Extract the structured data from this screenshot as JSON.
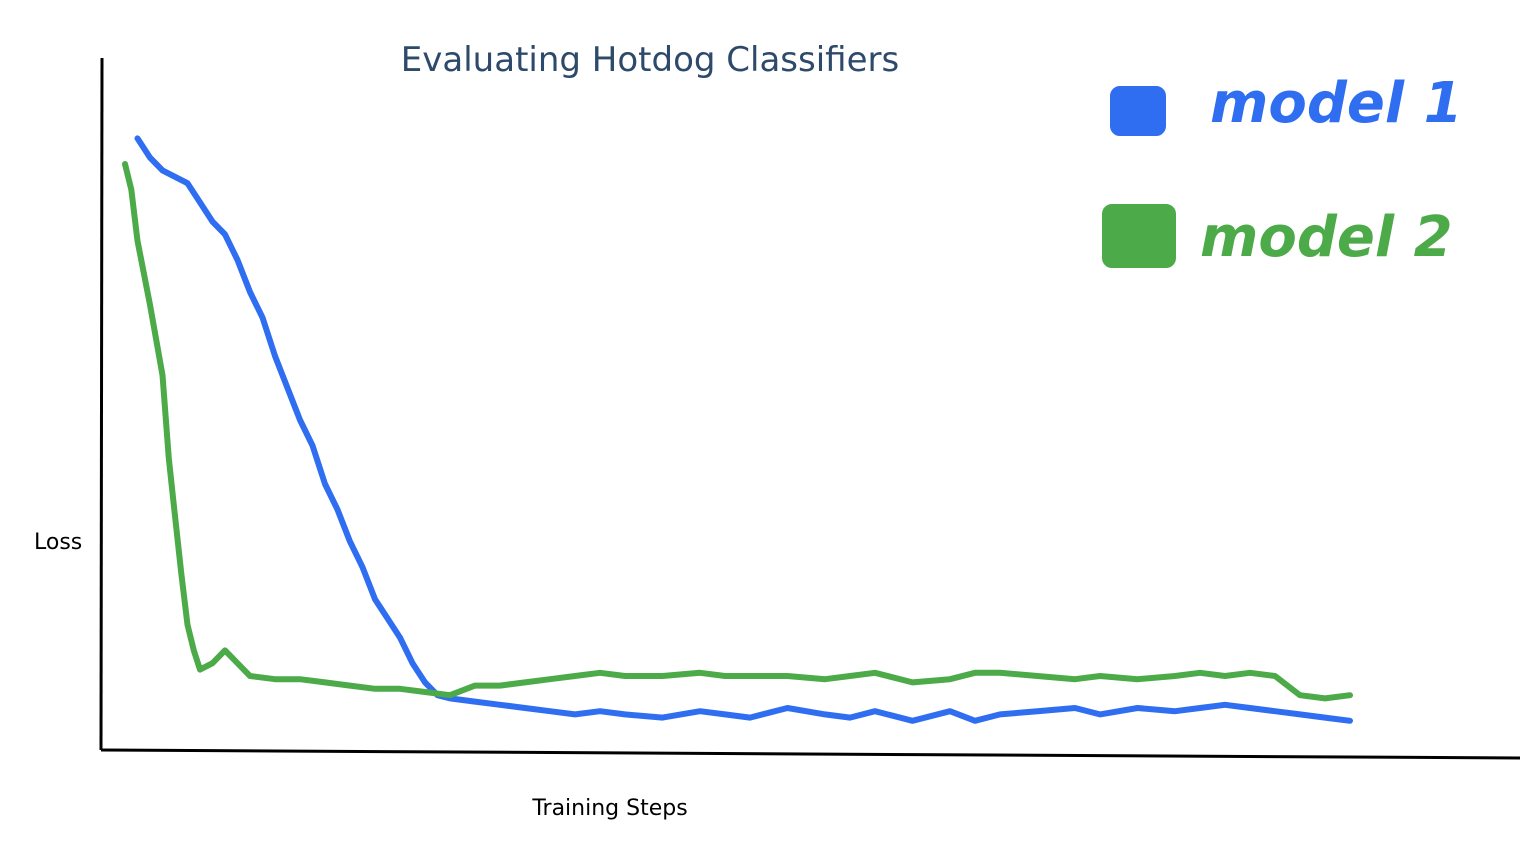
{
  "chart_data": {
    "type": "line",
    "title": "Evaluating Hotdog Classifiers",
    "xlabel": "Training Steps",
    "ylabel": "Loss",
    "ylim": [
      0,
      1
    ],
    "xlim": [
      0,
      1
    ],
    "grid": false,
    "legend": "top-right",
    "series": [
      {
        "name": "model 1",
        "color": "#2f6ef0",
        "x": [
          0.03,
          0.04,
          0.05,
          0.07,
          0.08,
          0.09,
          0.1,
          0.11,
          0.12,
          0.13,
          0.14,
          0.15,
          0.16,
          0.17,
          0.18,
          0.19,
          0.2,
          0.21,
          0.22,
          0.23,
          0.24,
          0.25,
          0.26,
          0.27,
          0.28,
          0.3,
          0.32,
          0.34,
          0.36,
          0.38,
          0.4,
          0.42,
          0.45,
          0.48,
          0.5,
          0.52,
          0.55,
          0.58,
          0.6,
          0.62,
          0.65,
          0.68,
          0.7,
          0.72,
          0.75,
          0.78,
          0.8,
          0.83,
          0.86,
          0.88,
          0.9,
          0.92,
          0.94,
          0.96,
          0.98,
          1.0
        ],
        "y": [
          0.94,
          0.91,
          0.89,
          0.87,
          0.84,
          0.81,
          0.79,
          0.75,
          0.7,
          0.66,
          0.6,
          0.55,
          0.5,
          0.46,
          0.4,
          0.36,
          0.31,
          0.27,
          0.22,
          0.19,
          0.16,
          0.12,
          0.09,
          0.07,
          0.065,
          0.06,
          0.055,
          0.05,
          0.045,
          0.04,
          0.045,
          0.04,
          0.035,
          0.045,
          0.04,
          0.035,
          0.05,
          0.04,
          0.035,
          0.045,
          0.03,
          0.045,
          0.03,
          0.04,
          0.045,
          0.05,
          0.04,
          0.05,
          0.045,
          0.05,
          0.055,
          0.05,
          0.045,
          0.04,
          0.035,
          0.03
        ]
      },
      {
        "name": "model 2",
        "color": "#4caa49",
        "x": [
          0.02,
          0.025,
          0.03,
          0.04,
          0.05,
          0.055,
          0.06,
          0.065,
          0.07,
          0.075,
          0.08,
          0.09,
          0.1,
          0.11,
          0.12,
          0.14,
          0.16,
          0.18,
          0.2,
          0.22,
          0.24,
          0.26,
          0.28,
          0.3,
          0.32,
          0.34,
          0.36,
          0.38,
          0.4,
          0.42,
          0.45,
          0.48,
          0.5,
          0.52,
          0.55,
          0.58,
          0.6,
          0.62,
          0.65,
          0.68,
          0.7,
          0.72,
          0.75,
          0.78,
          0.8,
          0.83,
          0.86,
          0.88,
          0.9,
          0.92,
          0.94,
          0.96,
          0.98,
          1.0
        ],
        "y": [
          0.9,
          0.86,
          0.78,
          0.68,
          0.57,
          0.44,
          0.35,
          0.26,
          0.18,
          0.14,
          0.11,
          0.12,
          0.14,
          0.12,
          0.1,
          0.095,
          0.095,
          0.09,
          0.085,
          0.08,
          0.08,
          0.075,
          0.07,
          0.085,
          0.085,
          0.09,
          0.095,
          0.1,
          0.105,
          0.1,
          0.1,
          0.105,
          0.1,
          0.1,
          0.1,
          0.095,
          0.1,
          0.105,
          0.09,
          0.095,
          0.105,
          0.105,
          0.1,
          0.095,
          0.1,
          0.095,
          0.1,
          0.105,
          0.1,
          0.105,
          0.1,
          0.07,
          0.065,
          0.07
        ]
      }
    ]
  }
}
